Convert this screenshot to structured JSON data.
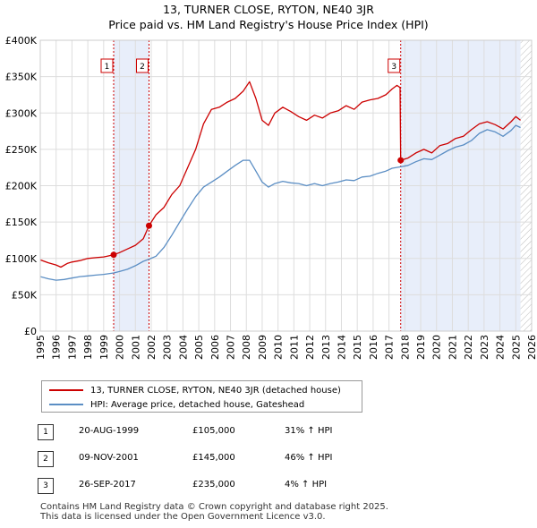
{
  "title": {
    "line1": "13, TURNER CLOSE, RYTON, NE40 3JR",
    "line2": "Price paid vs. HM Land Registry's House Price Index (HPI)"
  },
  "chart_data": {
    "type": "line",
    "title": "13, TURNER CLOSE, RYTON, NE40 3JR",
    "subtitle": "Price paid vs. HM Land Registry's House Price Index (HPI)",
    "xlim": [
      1995,
      2026
    ],
    "ylim": [
      0,
      400000
    ],
    "x_ticks": [
      1995,
      1996,
      1997,
      1998,
      1999,
      2000,
      2001,
      2002,
      2003,
      2004,
      2005,
      2006,
      2007,
      2008,
      2009,
      2010,
      2011,
      2012,
      2013,
      2014,
      2015,
      2016,
      2017,
      2018,
      2019,
      2020,
      2021,
      2022,
      2023,
      2024,
      2025,
      2026
    ],
    "y_ticks": [
      0,
      50000,
      100000,
      150000,
      200000,
      250000,
      300000,
      350000,
      400000
    ],
    "y_tick_labels": [
      "£0",
      "£50K",
      "£100K",
      "£150K",
      "£200K",
      "£250K",
      "£300K",
      "£350K",
      "£400K"
    ],
    "grid": true,
    "shaded_periods": [
      [
        1999.63,
        2001.86
      ],
      [
        2017.74,
        2025.3
      ]
    ],
    "hatched_period": [
      2025.3,
      2026
    ],
    "series": [
      {
        "name": "13, TURNER CLOSE, RYTON, NE40 3JR (detached house)",
        "color": "#cc0000",
        "points": [
          [
            1995.0,
            98000
          ],
          [
            1995.5,
            94000
          ],
          [
            1996.0,
            91000
          ],
          [
            1996.3,
            88000
          ],
          [
            1996.7,
            93000
          ],
          [
            1997.0,
            95000
          ],
          [
            1997.5,
            97000
          ],
          [
            1998.0,
            100000
          ],
          [
            1998.5,
            101000
          ],
          [
            1999.0,
            102000
          ],
          [
            1999.63,
            105000
          ],
          [
            2000.0,
            108000
          ],
          [
            2000.5,
            113000
          ],
          [
            2001.0,
            118000
          ],
          [
            2001.5,
            127000
          ],
          [
            2001.86,
            145000
          ],
          [
            2002.3,
            160000
          ],
          [
            2002.8,
            170000
          ],
          [
            2003.3,
            188000
          ],
          [
            2003.8,
            200000
          ],
          [
            2004.3,
            225000
          ],
          [
            2004.8,
            250000
          ],
          [
            2005.3,
            285000
          ],
          [
            2005.8,
            305000
          ],
          [
            2006.3,
            308000
          ],
          [
            2006.8,
            315000
          ],
          [
            2007.3,
            320000
          ],
          [
            2007.8,
            330000
          ],
          [
            2008.2,
            343000
          ],
          [
            2008.6,
            320000
          ],
          [
            2009.0,
            290000
          ],
          [
            2009.4,
            283000
          ],
          [
            2009.8,
            300000
          ],
          [
            2010.3,
            308000
          ],
          [
            2010.8,
            302000
          ],
          [
            2011.3,
            295000
          ],
          [
            2011.8,
            290000
          ],
          [
            2012.3,
            297000
          ],
          [
            2012.8,
            293000
          ],
          [
            2013.3,
            300000
          ],
          [
            2013.8,
            303000
          ],
          [
            2014.3,
            310000
          ],
          [
            2014.8,
            305000
          ],
          [
            2015.3,
            315000
          ],
          [
            2015.8,
            318000
          ],
          [
            2016.3,
            320000
          ],
          [
            2016.8,
            325000
          ],
          [
            2017.2,
            333000
          ],
          [
            2017.5,
            338000
          ],
          [
            2017.7,
            335000
          ],
          [
            2017.74,
            235000
          ],
          [
            2018.2,
            238000
          ],
          [
            2018.7,
            245000
          ],
          [
            2019.2,
            250000
          ],
          [
            2019.7,
            245000
          ],
          [
            2020.2,
            255000
          ],
          [
            2020.7,
            258000
          ],
          [
            2021.2,
            265000
          ],
          [
            2021.7,
            268000
          ],
          [
            2022.2,
            277000
          ],
          [
            2022.7,
            285000
          ],
          [
            2023.2,
            288000
          ],
          [
            2023.7,
            284000
          ],
          [
            2024.2,
            278000
          ],
          [
            2024.7,
            288000
          ],
          [
            2025.0,
            295000
          ],
          [
            2025.3,
            290000
          ]
        ]
      },
      {
        "name": "HPI: Average price, detached house, Gateshead",
        "color": "#5b8ec4",
        "points": [
          [
            1995.0,
            75000
          ],
          [
            1995.5,
            72000
          ],
          [
            1996.0,
            70000
          ],
          [
            1996.5,
            71000
          ],
          [
            1997.0,
            73000
          ],
          [
            1997.5,
            75000
          ],
          [
            1998.0,
            76000
          ],
          [
            1998.5,
            77000
          ],
          [
            1999.0,
            78000
          ],
          [
            1999.63,
            80000
          ],
          [
            2000.0,
            82000
          ],
          [
            2000.5,
            85000
          ],
          [
            2001.0,
            90000
          ],
          [
            2001.5,
            96000
          ],
          [
            2001.86,
            99000
          ],
          [
            2002.3,
            103000
          ],
          [
            2002.8,
            115000
          ],
          [
            2003.3,
            132000
          ],
          [
            2003.8,
            150000
          ],
          [
            2004.3,
            168000
          ],
          [
            2004.8,
            185000
          ],
          [
            2005.3,
            198000
          ],
          [
            2005.8,
            205000
          ],
          [
            2006.3,
            212000
          ],
          [
            2006.8,
            220000
          ],
          [
            2007.3,
            228000
          ],
          [
            2007.8,
            235000
          ],
          [
            2008.2,
            235000
          ],
          [
            2008.6,
            220000
          ],
          [
            2009.0,
            205000
          ],
          [
            2009.4,
            198000
          ],
          [
            2009.8,
            203000
          ],
          [
            2010.3,
            206000
          ],
          [
            2010.8,
            204000
          ],
          [
            2011.3,
            203000
          ],
          [
            2011.8,
            200000
          ],
          [
            2012.3,
            203000
          ],
          [
            2012.8,
            200000
          ],
          [
            2013.3,
            203000
          ],
          [
            2013.8,
            205000
          ],
          [
            2014.3,
            208000
          ],
          [
            2014.8,
            207000
          ],
          [
            2015.3,
            212000
          ],
          [
            2015.8,
            213000
          ],
          [
            2016.3,
            217000
          ],
          [
            2016.8,
            220000
          ],
          [
            2017.2,
            224000
          ],
          [
            2017.74,
            226000
          ],
          [
            2018.2,
            228000
          ],
          [
            2018.7,
            233000
          ],
          [
            2019.2,
            237000
          ],
          [
            2019.7,
            236000
          ],
          [
            2020.2,
            242000
          ],
          [
            2020.7,
            248000
          ],
          [
            2021.2,
            253000
          ],
          [
            2021.7,
            256000
          ],
          [
            2022.2,
            262000
          ],
          [
            2022.7,
            272000
          ],
          [
            2023.2,
            277000
          ],
          [
            2023.7,
            274000
          ],
          [
            2024.2,
            268000
          ],
          [
            2024.7,
            276000
          ],
          [
            2025.0,
            283000
          ],
          [
            2025.3,
            280000
          ]
        ]
      }
    ],
    "sale_markers": [
      {
        "label": "1",
        "x": 1999.63,
        "y": 105000
      },
      {
        "label": "2",
        "x": 2001.86,
        "y": 145000
      },
      {
        "label": "3",
        "x": 2017.74,
        "y": 235000
      }
    ]
  },
  "legend": {
    "property_label": "13, TURNER CLOSE, RYTON, NE40 3JR (detached house)",
    "hpi_label": "HPI: Average price, detached house, Gateshead",
    "property_color": "#cc0000",
    "hpi_color": "#5b8ec4"
  },
  "sales": [
    {
      "num": "1",
      "date": "20-AUG-1999",
      "price": "£105,000",
      "hpi": "31% ↑ HPI"
    },
    {
      "num": "2",
      "date": "09-NOV-2001",
      "price": "£145,000",
      "hpi": "46% ↑ HPI"
    },
    {
      "num": "3",
      "date": "26-SEP-2017",
      "price": "£235,000",
      "hpi": "4% ↑ HPI"
    }
  ],
  "footer": {
    "line1": "Contains HM Land Registry data © Crown copyright and database right 2025.",
    "line2": "This data is licensed under the Open Government Licence v3.0."
  }
}
